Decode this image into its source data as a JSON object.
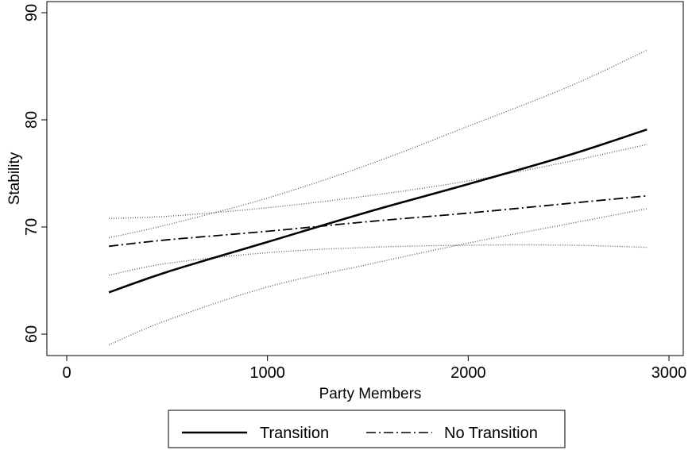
{
  "chart_data": {
    "type": "line",
    "title": "",
    "xlabel": "Party Members",
    "ylabel": "Stability",
    "xlim": [
      0,
      3000
    ],
    "ylim": [
      59,
      90
    ],
    "x_ticks": [
      "0",
      "1000",
      "2000",
      "3000"
    ],
    "y_ticks": [
      "60",
      "70",
      "80",
      "90"
    ],
    "grid": false,
    "legend_position": "bottom",
    "x": [
      210,
      500,
      1000,
      1500,
      2000,
      2500,
      2890
    ],
    "series": [
      {
        "name": "Transition",
        "style": "solid",
        "values": [
          63.9,
          65.8,
          68.6,
          71.4,
          74.0,
          76.7,
          79.1
        ],
        "ci_upper": [
          69.0,
          70.2,
          72.7,
          75.8,
          79.4,
          83.1,
          86.5
        ],
        "ci_lower": [
          59.0,
          61.3,
          64.4,
          66.5,
          68.5,
          70.3,
          71.7
        ]
      },
      {
        "name": "No Transition",
        "style": "dashdot",
        "values": [
          68.2,
          68.8,
          69.6,
          70.5,
          71.3,
          72.2,
          72.9
        ],
        "ci_upper": [
          70.8,
          71.0,
          71.8,
          72.9,
          74.3,
          76.1,
          77.7
        ],
        "ci_lower": [
          65.5,
          66.6,
          67.6,
          68.1,
          68.3,
          68.3,
          68.1
        ]
      }
    ]
  },
  "legend": {
    "items": [
      "Transition",
      "No Transition"
    ]
  }
}
